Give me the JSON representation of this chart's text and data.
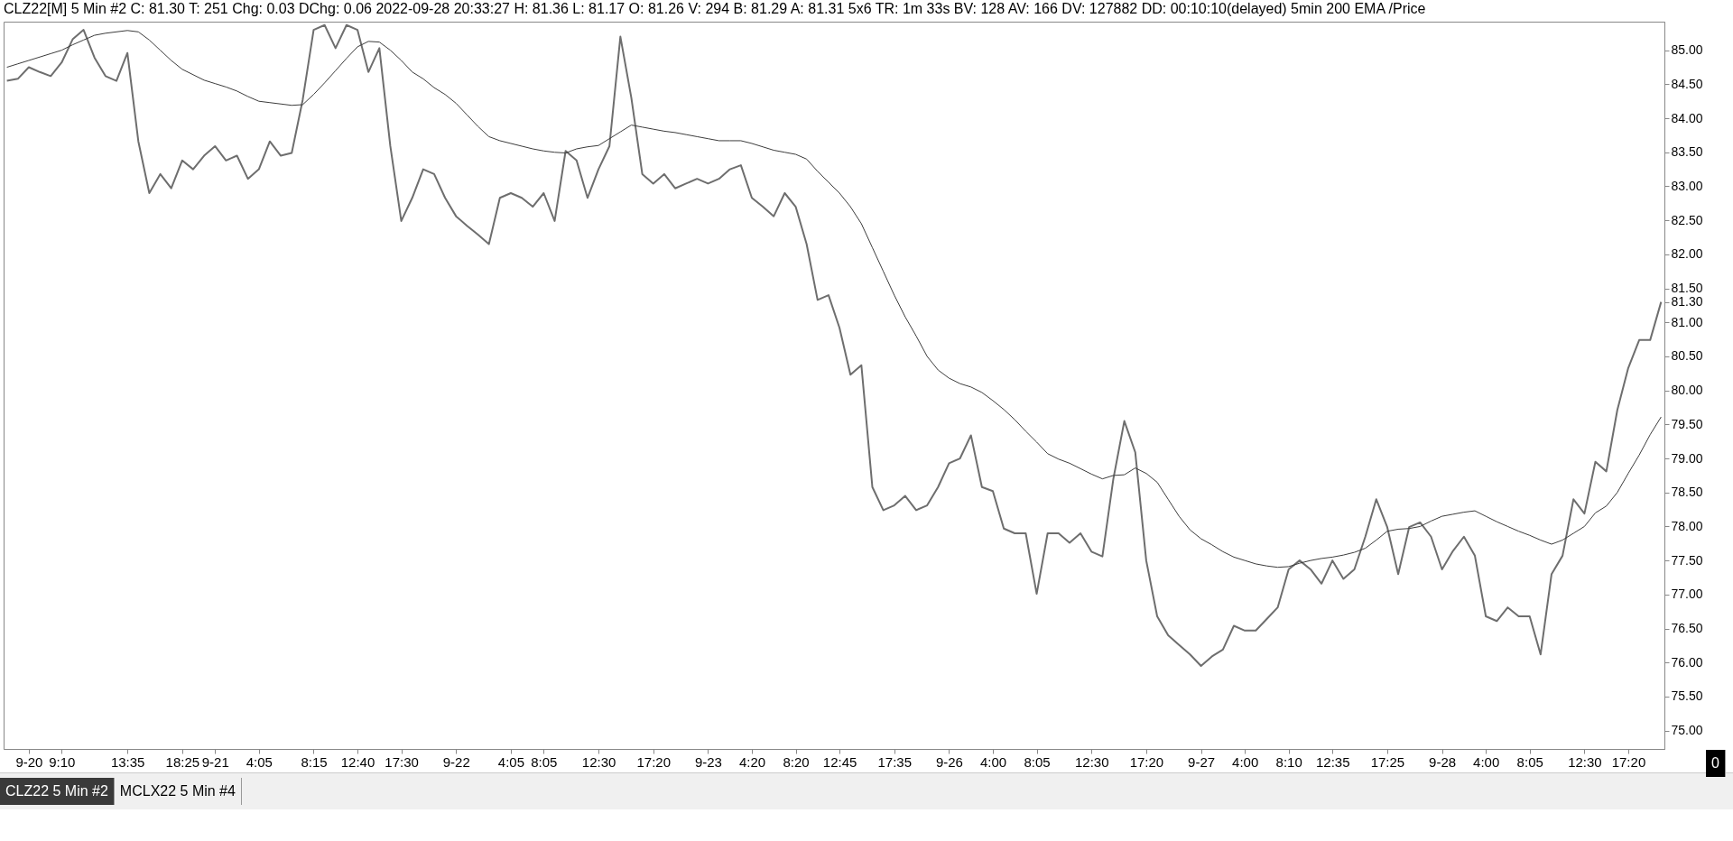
{
  "chart_data": {
    "type": "line",
    "title": "CLZ22[M]  5 Min   #2 C: 81.30 T: 251 Chg: 0.03 DChg: 0.06 2022-09-28 20:33:27 H: 81.36 L: 81.17 O: 81.26 V: 294 B: 81.29 A: 81.31 5x6 TR: 1m 33s BV: 128 AV: 166 DV: 127882 DD: 00:10:10(delayed) 5min 200 EMA /Price",
    "categories": [
      null,
      null,
      "9-20",
      null,
      null,
      "9:10",
      null,
      null,
      null,
      null,
      null,
      "13:35",
      null,
      null,
      null,
      null,
      "18:25",
      null,
      null,
      "9-21",
      null,
      null,
      null,
      "4:05",
      null,
      null,
      null,
      null,
      "8:15",
      null,
      null,
      null,
      "12:40",
      null,
      null,
      null,
      "17:30",
      null,
      null,
      null,
      null,
      "9-22",
      null,
      null,
      null,
      null,
      "4:05",
      null,
      null,
      "8:05",
      null,
      null,
      null,
      null,
      "12:30",
      null,
      null,
      null,
      null,
      "17:20",
      null,
      null,
      null,
      null,
      "9-23",
      null,
      null,
      null,
      "4:20",
      null,
      null,
      null,
      "8:20",
      null,
      null,
      null,
      "12:45",
      null,
      null,
      null,
      null,
      "17:35",
      null,
      null,
      null,
      null,
      "9-26",
      null,
      null,
      null,
      "4:00",
      null,
      null,
      null,
      "8:05",
      null,
      null,
      null,
      null,
      "12:30",
      null,
      null,
      null,
      null,
      "17:20",
      null,
      null,
      null,
      null,
      "9-27",
      null,
      null,
      null,
      "4:00",
      null,
      null,
      null,
      "8:10",
      null,
      null,
      null,
      "12:35",
      null,
      null,
      null,
      null,
      "17:25",
      null,
      null,
      null,
      null,
      "9-28",
      null,
      null,
      null,
      "4:00",
      null,
      null,
      null,
      "8:05",
      null,
      null,
      null,
      null,
      "12:30",
      null,
      null,
      null,
      "17:20",
      null,
      null,
      null
    ],
    "series": [
      {
        "color": "#6e6e6e",
        "values": [
          84.55,
          84.58,
          84.75,
          84.68,
          84.62,
          84.82,
          85.16,
          85.3,
          84.89,
          84.62,
          84.55,
          84.96,
          83.66,
          82.9,
          83.18,
          82.97,
          83.38,
          83.25,
          83.45,
          83.59,
          83.38,
          83.45,
          83.11,
          83.25,
          83.66,
          83.45,
          83.49,
          84.27,
          85.3,
          85.37,
          85.03,
          85.37,
          85.3,
          84.68,
          85.03,
          83.59,
          82.49,
          82.83,
          83.25,
          83.18,
          82.83,
          82.56,
          82.42,
          82.29,
          82.15,
          82.83,
          82.9,
          82.83,
          82.7,
          82.9,
          82.49,
          83.52,
          83.38,
          82.83,
          83.25,
          83.59,
          85.2,
          84.3,
          83.18,
          83.04,
          83.18,
          82.97,
          83.04,
          83.11,
          83.04,
          83.11,
          83.25,
          83.31,
          82.83,
          82.7,
          82.56,
          82.9,
          82.7,
          82.15,
          81.33,
          81.4,
          80.92,
          80.23,
          80.37,
          78.58,
          78.24,
          78.31,
          78.45,
          78.24,
          78.31,
          78.58,
          78.93,
          79.0,
          79.34,
          78.58,
          78.52,
          77.97,
          77.9,
          77.9,
          77.01,
          77.9,
          77.9,
          77.76,
          77.9,
          77.63,
          77.56,
          78.7,
          79.55,
          79.09,
          77.5,
          76.68,
          76.4,
          76.26,
          76.12,
          75.95,
          76.09,
          76.19,
          76.54,
          76.47,
          76.47,
          76.64,
          76.81,
          77.37,
          77.5,
          77.37,
          77.16,
          77.5,
          77.23,
          77.37,
          77.85,
          78.4,
          77.99,
          77.3,
          77.99,
          78.06,
          77.85,
          77.37,
          77.64,
          77.85,
          77.57,
          76.68,
          76.61,
          76.81,
          76.68,
          76.68,
          76.12,
          77.3,
          77.57,
          78.4,
          78.19,
          78.95,
          78.81,
          79.71,
          80.33,
          80.74,
          80.74,
          81.3
        ]
      },
      {
        "color": "#3c3c3c",
        "values": [
          84.75,
          84.8,
          84.85,
          84.9,
          84.95,
          85.0,
          85.08,
          85.15,
          85.22,
          85.25,
          85.27,
          85.29,
          85.27,
          85.15,
          85.0,
          84.85,
          84.72,
          84.64,
          84.56,
          84.51,
          84.46,
          84.4,
          84.32,
          84.25,
          84.23,
          84.21,
          84.19,
          84.2,
          84.35,
          84.52,
          84.7,
          84.88,
          85.05,
          85.13,
          85.12,
          85.0,
          84.85,
          84.68,
          84.58,
          84.45,
          84.35,
          84.22,
          84.05,
          83.88,
          83.73,
          83.67,
          83.63,
          83.59,
          83.55,
          83.52,
          83.5,
          83.49,
          83.55,
          83.58,
          83.6,
          83.7,
          83.8,
          83.9,
          83.87,
          83.84,
          83.81,
          83.79,
          83.76,
          83.73,
          83.7,
          83.67,
          83.67,
          83.67,
          83.63,
          83.58,
          83.53,
          83.5,
          83.47,
          83.4,
          83.22,
          83.06,
          82.9,
          82.7,
          82.45,
          82.1,
          81.75,
          81.4,
          81.08,
          80.8,
          80.5,
          80.3,
          80.18,
          80.1,
          80.05,
          79.97,
          79.85,
          79.72,
          79.57,
          79.4,
          79.24,
          79.07,
          78.99,
          78.93,
          78.85,
          78.77,
          78.7,
          78.75,
          78.76,
          78.86,
          78.78,
          78.65,
          78.4,
          78.15,
          77.95,
          77.82,
          77.73,
          77.63,
          77.55,
          77.5,
          77.45,
          77.42,
          77.4,
          77.41,
          77.46,
          77.5,
          77.53,
          77.55,
          77.58,
          77.62,
          77.68,
          77.8,
          77.93,
          77.96,
          77.97,
          78.0,
          78.08,
          78.15,
          78.18,
          78.21,
          78.23,
          78.15,
          78.07,
          78.0,
          77.93,
          77.87,
          77.8,
          77.74,
          77.8,
          77.9,
          78.0,
          78.2,
          78.3,
          78.5,
          78.78,
          79.05,
          79.35,
          79.61
        ]
      }
    ],
    "ylim": [
      74.73,
      85.42
    ],
    "yticks": [
      {
        "value": 75,
        "label": "75.00"
      },
      {
        "value": 75.5,
        "label": "75.50"
      },
      {
        "value": 76,
        "label": "76.00"
      },
      {
        "value": 76.5,
        "label": "76.50"
      },
      {
        "value": 77,
        "label": "77.00"
      },
      {
        "value": 77.5,
        "label": "77.50"
      },
      {
        "value": 78,
        "label": "78.00"
      },
      {
        "value": 78.5,
        "label": "78.50"
      },
      {
        "value": 79,
        "label": "79.00"
      },
      {
        "value": 79.5,
        "label": "79.50"
      },
      {
        "value": 80,
        "label": "80.00"
      },
      {
        "value": 80.5,
        "label": "80.50"
      },
      {
        "value": 81,
        "label": "81.00"
      },
      {
        "value": 81.3,
        "label": "81.30"
      },
      {
        "value": 81.5,
        "label": "81.50"
      },
      {
        "value": 82,
        "label": "82.00"
      },
      {
        "value": 82.5,
        "label": "82.50"
      },
      {
        "value": 83,
        "label": "83.00"
      },
      {
        "value": 83.5,
        "label": "83.50"
      },
      {
        "value": 84,
        "label": "84.00"
      },
      {
        "value": 84.5,
        "label": "84.50"
      },
      {
        "value": 85,
        "label": "85.00"
      }
    ],
    "grid": false,
    "annotations": [
      "0",
      "CLZ22  5 Min   #2",
      "MCLX22  5 Min   #4"
    ]
  }
}
